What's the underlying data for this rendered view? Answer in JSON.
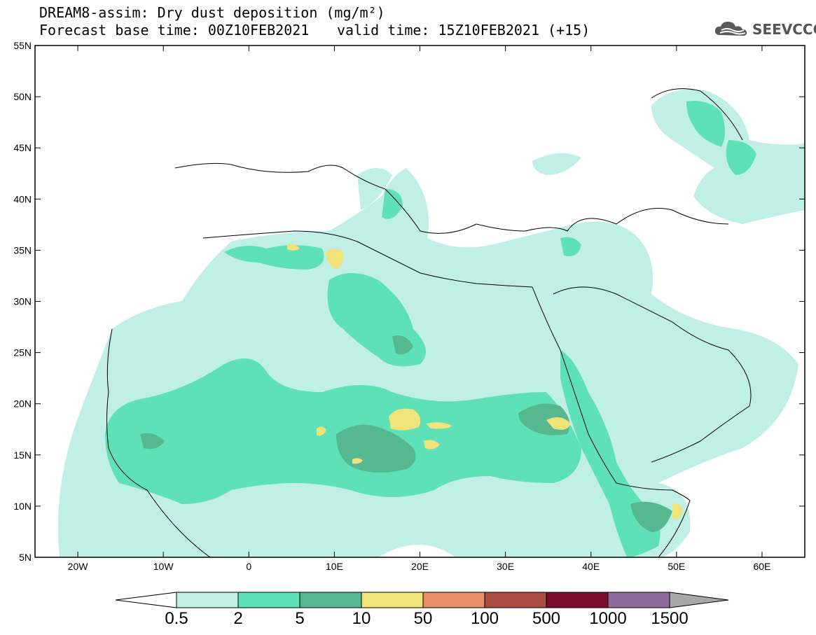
{
  "title": {
    "line1": "DREAM8-assim: Dry dust deposition (mg/m²)",
    "line2": "Forecast base time: 00Z10FEB2021",
    "valid": "valid time: 15Z10FEB2021 (+15)"
  },
  "logo": {
    "text": "SEEVCCC",
    "icon": "cloud-icon"
  },
  "axes": {
    "lat_labels": [
      "55N",
      "50N",
      "45N",
      "40N",
      "35N",
      "30N",
      "25N",
      "20N",
      "15N",
      "10N",
      "5N"
    ],
    "lon_labels": [
      "20W",
      "10W",
      "0",
      "10E",
      "20E",
      "30E",
      "40E",
      "50E",
      "60E"
    ],
    "lat_range": [
      5,
      55
    ],
    "lon_range": [
      -25,
      65
    ]
  },
  "colorbar": {
    "labels": [
      "0.5",
      "2",
      "5",
      "10",
      "50",
      "100",
      "500",
      "1000",
      "1500"
    ],
    "colors": [
      "#c0efe6",
      "#5ee1b7",
      "#55b88f",
      "#f0e37a",
      "#e79068",
      "#ab4d42",
      "#7d0c2b",
      "#8f6c9f"
    ],
    "under_color": "#ffffff",
    "over_color": "#a8a8a8"
  },
  "legend_colors": {
    "level1": "#c0efe6",
    "level2": "#5ee1b7",
    "level3": "#55b88f",
    "level4": "#f0e37a"
  }
}
